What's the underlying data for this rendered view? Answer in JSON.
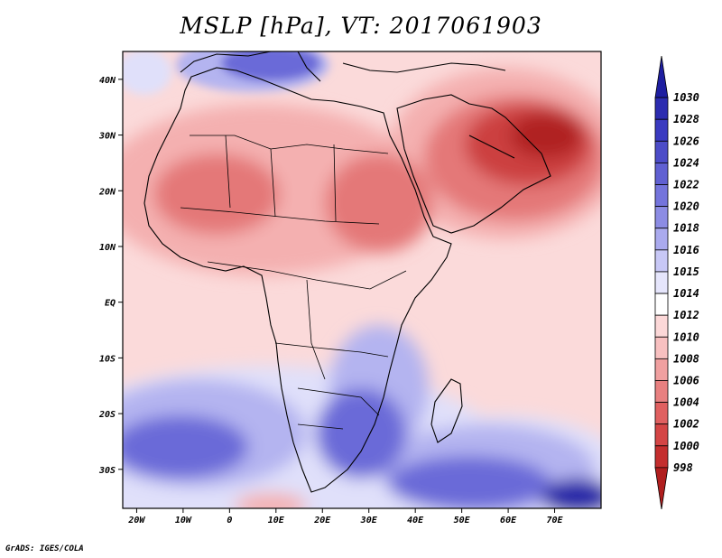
{
  "title": "MSLP [hPa], VT: 2017061903",
  "footer": "GrADS: IGES/COLA",
  "map": {
    "lon_range": [
      -23,
      80
    ],
    "lat_range": [
      -37,
      45
    ],
    "lat_ticks": [
      {
        "lat": 40,
        "label": "40N"
      },
      {
        "lat": 30,
        "label": "30N"
      },
      {
        "lat": 20,
        "label": "20N"
      },
      {
        "lat": 10,
        "label": "10N"
      },
      {
        "lat": 0,
        "label": "EQ"
      },
      {
        "lat": -10,
        "label": "10S"
      },
      {
        "lat": -20,
        "label": "20S"
      },
      {
        "lat": -30,
        "label": "30S"
      }
    ],
    "lon_ticks": [
      {
        "lon": -20,
        "label": "20W"
      },
      {
        "lon": -10,
        "label": "10W"
      },
      {
        "lon": 0,
        "label": "0"
      },
      {
        "lon": 10,
        "label": "10E"
      },
      {
        "lon": 20,
        "label": "20E"
      },
      {
        "lon": 30,
        "label": "30E"
      },
      {
        "lon": 40,
        "label": "40E"
      },
      {
        "lon": 50,
        "label": "50E"
      },
      {
        "lon": 60,
        "label": "60E"
      },
      {
        "lon": 70,
        "label": "70E"
      }
    ]
  },
  "colorbar": {
    "levels": [
      "1030",
      "1028",
      "1026",
      "1024",
      "1022",
      "1020",
      "1018",
      "1016",
      "1015",
      "1014",
      "1012",
      "1010",
      "1008",
      "1006",
      "1004",
      "1002",
      "1000",
      "998"
    ],
    "colors": [
      "#1e1ea0",
      "#2c2cb0",
      "#3a3ac0",
      "#4c4cc8",
      "#6060d2",
      "#7474dc",
      "#8c8ce4",
      "#aaaaee",
      "#c8c8f6",
      "#e6e6fc",
      "#ffffff",
      "#fcd8d8",
      "#f8c0c0",
      "#f0a0a0",
      "#e88080",
      "#e06060",
      "#d44545",
      "#c42e2e",
      "#b01e1e"
    ]
  },
  "palette": {
    "deep_blue": "#2828a8",
    "blue": "#6a6ad8",
    "light_blue": "#b4b4f0",
    "pale_blue": "#e0e0fa",
    "pale_red": "#fbdada",
    "light_red": "#f4b0b0",
    "red": "#e47878",
    "dark_red": "#cc4040",
    "deepest_red": "#b02020"
  }
}
